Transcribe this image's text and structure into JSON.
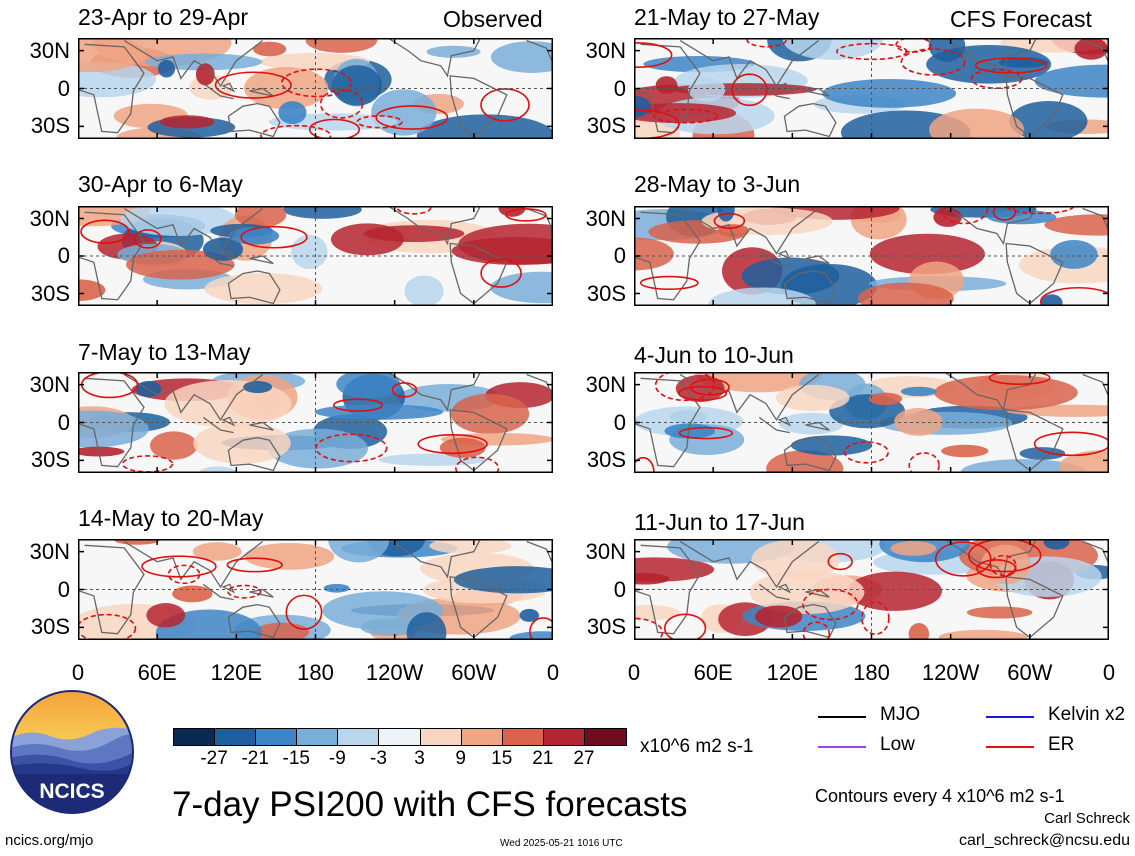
{
  "title": "7-day PSI200 with CFS forecasts",
  "columns": [
    {
      "header": "Observed",
      "panels": [
        "23-Apr to 29-Apr",
        "30-Apr to 6-May",
        "7-May to 13-May",
        "14-May to 20-May"
      ]
    },
    {
      "header": "CFS Forecast",
      "panels": [
        "21-May to 27-May",
        "28-May to 3-Jun",
        "4-Jun to 10-Jun",
        "11-Jun to 17-Jun"
      ]
    }
  ],
  "lat_labels": [
    "30N",
    "0",
    "30S"
  ],
  "lon_labels": [
    "0",
    "60E",
    "120E",
    "180",
    "120W",
    "60W",
    "0"
  ],
  "colorbar": {
    "ticks": [
      "-27",
      "-21",
      "-15",
      "-9",
      "-3",
      "3",
      "9",
      "15",
      "21",
      "27"
    ],
    "units": "x10^6 m2 s-1",
    "colors": [
      "#0b2a52",
      "#1f5f9e",
      "#3d85c6",
      "#79aed8",
      "#b8d6ec",
      "#eef3f8",
      "#f9d6c2",
      "#f0a584",
      "#d9634b",
      "#b52430",
      "#6d0e1f"
    ]
  },
  "legend": [
    {
      "label": "MJO",
      "color": "#000000"
    },
    {
      "label": "Kelvin x2",
      "color": "#1a1ad6"
    },
    {
      "label": "Low",
      "color": "#a040e0"
    },
    {
      "label": "ER",
      "color": "#e01010"
    }
  ],
  "contour_note": "Contours every 4 x10^6 m2 s-1",
  "author": "Carl Schreck",
  "email": "carl_schreck@ncsu.edu",
  "website": "ncics.org/mjo",
  "timestamp": "Wed 2025-05-21 1016 UTC",
  "logo_text": "NCICS"
}
